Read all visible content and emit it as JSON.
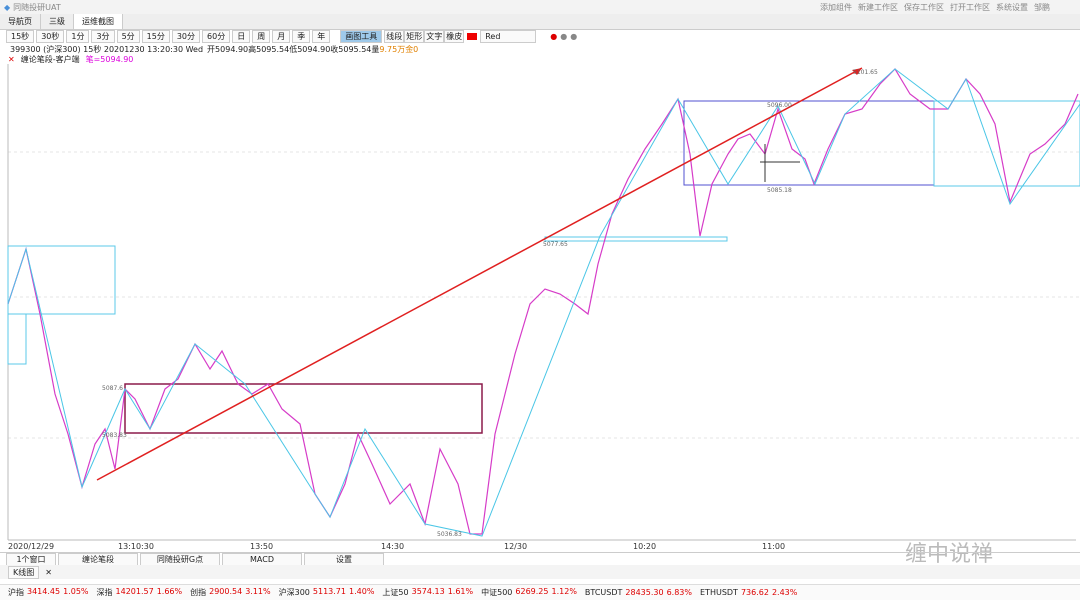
{
  "title_bar": {
    "app": "同随投研UAT",
    "links": [
      "添加组件",
      "新建工作区",
      "保存工作区",
      "打开工作区",
      "系统设置",
      "邹鹏"
    ]
  },
  "tabs": [
    "导航页",
    "三级",
    "运维截图"
  ],
  "periods": [
    "15秒",
    "30秒",
    "1分",
    "3分",
    "5分",
    "15分",
    "30分",
    "60分",
    "日",
    "周",
    "月",
    "季",
    "年"
  ],
  "draw_tools": [
    "画图工具",
    "线段",
    "矩形",
    "文字",
    "橡皮"
  ],
  "color_name": "Red",
  "info": {
    "symbol": "399300 (沪深300) 15秒 20201230 13:20:30 Wed",
    "ohlc": "开5094.90高5095.54低5094.90收5095.54量",
    "volume": "9.75万",
    "extra": "金0"
  },
  "indicator": {
    "name": "缠论笔段-客户端",
    "value": "笔=5094.90"
  },
  "price_labels": [
    "5101.65",
    "5096.00",
    "5085.18",
    "5077.65",
    "5087.6",
    "5083.83",
    "5036.83"
  ],
  "time_axis": [
    "2020/12/29",
    "13:10:30",
    "13:50",
    "14:30",
    "12/30",
    "10:20",
    "11:00"
  ],
  "bottom_tabs": [
    "1个窗口",
    "缠论笔段",
    "同随投研G点",
    "MACD",
    "设置"
  ],
  "chart_tab": "K线图",
  "tickers": [
    {
      "name": "沪指",
      "price": "3414.45",
      "change": "1.05%"
    },
    {
      "name": "深指",
      "price": "14201.57",
      "change": "1.66%"
    },
    {
      "name": "创指",
      "price": "2900.54",
      "change": "3.11%"
    },
    {
      "name": "沪深300",
      "price": "5113.71",
      "change": "1.40%"
    },
    {
      "name": "上证50",
      "price": "3574.13",
      "change": "1.61%"
    },
    {
      "name": "中证500",
      "price": "6269.25",
      "change": "1.12%"
    },
    {
      "name": "BTCUSDT",
      "price": "28435.30",
      "change": "6.83%"
    },
    {
      "name": "ETHUSDT",
      "price": "736.62",
      "change": "2.43%"
    }
  ],
  "watermark": "缠中说禅"
}
